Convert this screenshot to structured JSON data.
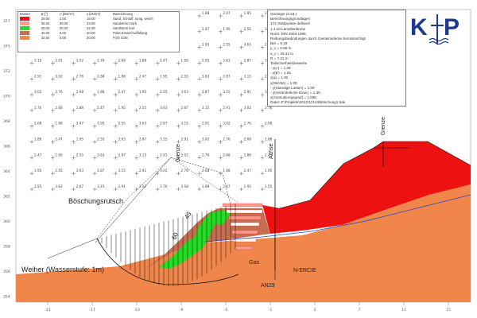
{
  "legend": {
    "headers": [
      "Muster",
      "ϕ'\n[°]",
      "c'\n[kN/m²]",
      "γ\n[kN/m³]",
      "Bezeichnung"
    ],
    "rows": [
      {
        "color": "#e8141a",
        "phi": "25.00",
        "c": "2.00",
        "gamma": "18.00",
        "name": "Sand, Schluff, tonig, weich"
      },
      {
        "color": "#ff9a8a",
        "phi": "35.00",
        "c": "30.00",
        "gamma": "23.00",
        "name": "Sandstein mürb"
      },
      {
        "color": "#22dd22",
        "phi": "30.00",
        "c": "20.00",
        "gamma": "22.00",
        "name": "Sandstein fest"
      },
      {
        "color": "#c86e50",
        "phi": "40.00",
        "c": "5.00",
        "gamma": "20.00",
        "name": "Polst.Ersatz/Auffüllung"
      },
      {
        "color": "#f0864a",
        "phi": "32.50",
        "c": "0.00",
        "gamma": "20.00",
        "name": "FOS GSE"
      }
    ]
  },
  "info_lines": [
    "Geologie (3.18.)",
    "Berechnungsgrundlagen",
    "172 Gleitpunkte definiert",
    "1.1,10.Lamellenbreite",
    "Norm: DIN 4084:1996",
    "Reibungsbedindungen durch Gesteinsdecke berücksichtigt",
    "Ber = 0.18",
    "y_c = 0.59 m",
    "x_c = 26.32 m",
    "R = 7.21 m",
    "Teilsicherheitsbeiwerte",
    "- γ(c') = 1.25",
    "- γ(ϕ') = 1.25",
    "  γ(q) = 1.30",
    "  γ(Wichte) = 1.00",
    "- γ(Standige Lasten) = 1.00",
    "- γ(Veränderliche Einw.) = 1.30",
    "  γ(Ausnutzungsgrad) = 1.065",
    "Datei: Z:\\Projekte\\2012\\12144\\Böschung1.bde"
  ],
  "logo": {
    "k": "K",
    "p": "P",
    "color": "#1f3a8a"
  },
  "labels": {
    "boeschungsrutsch": "Böschungsrutsch",
    "weiher": "Weiher (Wasserstufe: 1m)",
    "grenze_top": "Grenze",
    "grenze_left": "Grenze",
    "achse": "Achse",
    "an29": "AN29",
    "n_ercie": "N-ERCIE",
    "gas": "Gas",
    "angle_45": "45",
    "angle_60": "60"
  },
  "axis": {
    "x_ticks": [
      "-21",
      "-17",
      "-13",
      "-9",
      "-5",
      "-1",
      "3",
      "7",
      "11",
      "15"
    ],
    "y_ticks": [
      "377",
      "375",
      "372",
      "370",
      "368",
      "366",
      "364",
      "362",
      "360",
      "358",
      "356",
      "354"
    ]
  },
  "grid": {
    "row_values": [
      "2.55",
      "3.63",
      "2.87",
      "3.15",
      "2.91",
      "3.02",
      "2.76",
      "2.68",
      "1.88",
      "2.47",
      "1.95"
    ]
  },
  "colors": {
    "red_layer": "#ee1111",
    "pink_layer": "#ff9a8a",
    "green_layer": "#22dd22",
    "brown_layer": "#c86e50",
    "orange_layer": "#f0864a",
    "slip_lines": "#111111"
  }
}
